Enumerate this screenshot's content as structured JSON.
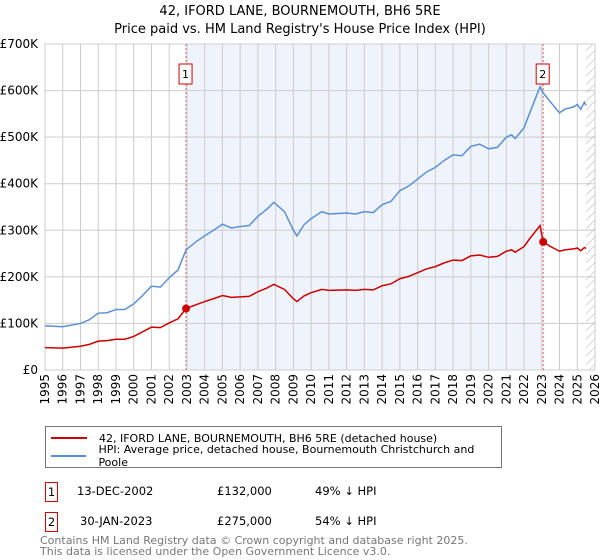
{
  "chart_data": {
    "type": "line",
    "title": "42, IFORD LANE, BOURNEMOUTH, BH6 5RE",
    "subtitle": "Price paid vs. HM Land Registry's House Price Index (HPI)",
    "xlim": [
      1995,
      2026
    ],
    "ylim": [
      0,
      700000
    ],
    "y_ticks": [
      0,
      100000,
      200000,
      300000,
      400000,
      500000,
      600000,
      700000
    ],
    "y_tick_labels": [
      "£0",
      "£100K",
      "£200K",
      "£300K",
      "£400K",
      "£500K",
      "£600K",
      "£700K"
    ],
    "x_ticks": [
      1995,
      1996,
      1997,
      1998,
      1999,
      2000,
      2001,
      2002,
      2003,
      2004,
      2005,
      2006,
      2007,
      2008,
      2009,
      2010,
      2011,
      2012,
      2013,
      2014,
      2015,
      2016,
      2017,
      2018,
      2019,
      2020,
      2021,
      2022,
      2023,
      2024,
      2025,
      2026
    ],
    "grid": true,
    "x": [
      1995,
      1996,
      1997,
      1997.5,
      1998,
      1998.5,
      1999,
      1999.5,
      2000,
      2000.5,
      2001,
      2001.5,
      2002,
      2002.5,
      2002.95,
      2003.5,
      2004,
      2004.5,
      2005,
      2005.5,
      2006,
      2006.5,
      2007,
      2007.5,
      2007.9,
      2008.5,
      2009,
      2009.2,
      2009.6,
      2010,
      2010.6,
      2011,
      2012,
      2012.5,
      2013,
      2013.5,
      2014,
      2014.5,
      2015,
      2015.5,
      2016,
      2016.5,
      2017,
      2017.5,
      2018,
      2018.5,
      2019,
      2019.5,
      2020,
      2020.5,
      2021,
      2021.3,
      2021.5,
      2022,
      2022.3,
      2022.9,
      2023.08,
      2023.5,
      2024,
      2024.3,
      2024.8,
      2025,
      2025.2,
      2025.4,
      2025.5
    ],
    "series": [
      {
        "name": "42, IFORD LANE, BOURNEMOUTH, BH6 5RE (detached house)",
        "color": "#cc0000",
        "values": [
          48,
          47,
          51,
          55,
          62,
          63,
          66,
          66,
          72,
          82,
          92,
          91,
          101,
          110,
          132,
          140,
          147,
          153,
          160,
          156,
          157,
          158,
          168,
          176,
          184,
          173,
          153,
          147,
          159,
          166,
          173,
          171,
          172,
          171,
          173,
          172,
          181,
          185,
          196,
          201,
          209,
          217,
          222,
          230,
          236,
          235,
          245,
          247,
          242,
          244,
          255,
          258,
          253,
          265,
          281,
          310,
          275,
          265,
          255,
          258,
          260,
          262,
          256,
          263,
          261
        ]
      },
      {
        "name": "HPI: Average price, detached house, Bournemouth Christchurch and Poole",
        "color": "#5b8fd4",
        "values": [
          95,
          93,
          100,
          108,
          122,
          123,
          130,
          130,
          142,
          160,
          180,
          178,
          198,
          215,
          258,
          275,
          288,
          300,
          313,
          305,
          308,
          310,
          330,
          345,
          360,
          340,
          300,
          288,
          312,
          325,
          340,
          335,
          337,
          335,
          340,
          338,
          355,
          362,
          385,
          395,
          410,
          425,
          435,
          450,
          462,
          460,
          480,
          485,
          475,
          478,
          500,
          505,
          497,
          520,
          550,
          608,
          595,
          575,
          552,
          560,
          565,
          570,
          560,
          575,
          568
        ]
      }
    ],
    "value_unit": "thousand GBP",
    "shaded_region": [
      2002.95,
      2023.08
    ],
    "forecast_hatch_from": 2025.5,
    "annotations": [
      {
        "label": "1",
        "x": 2002.95,
        "y": 132000
      },
      {
        "label": "2",
        "x": 2023.08,
        "y": 275000
      }
    ],
    "legend_placement": "bottom"
  },
  "transactions": [
    {
      "num": "1",
      "date": "13-DEC-2002",
      "price": "£132,000",
      "hpi": "49% ↓ HPI"
    },
    {
      "num": "2",
      "date": "30-JAN-2023",
      "price": "£275,000",
      "hpi": "54% ↓ HPI"
    }
  ],
  "footer": {
    "line1": "Contains HM Land Registry data © Crown copyright and database right 2025.",
    "line2": "This data is licensed under the Open Government Licence v3.0."
  }
}
